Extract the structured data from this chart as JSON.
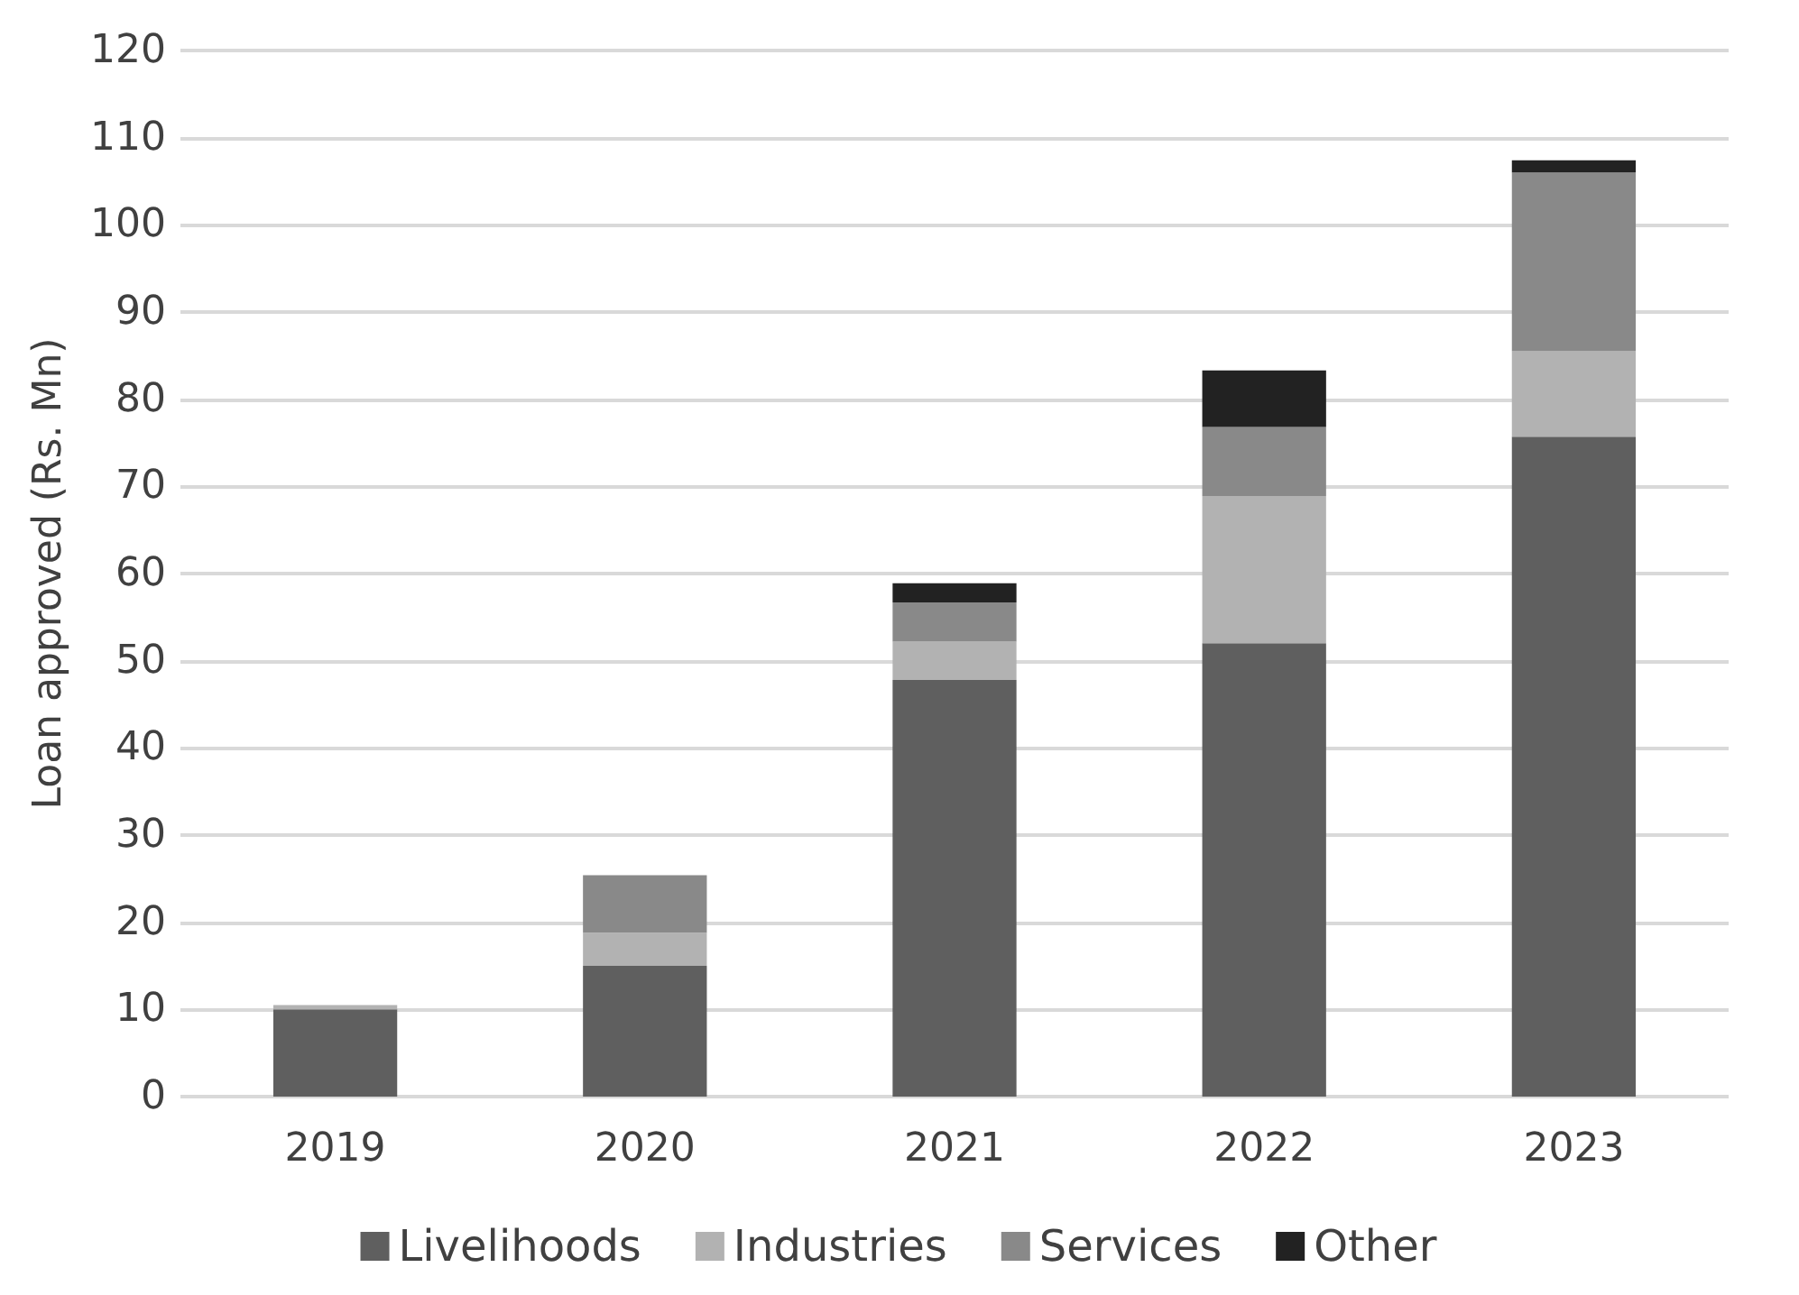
{
  "chart_data": {
    "type": "bar",
    "stacked": true,
    "ylabel": "Loan approved (Rs. Mn)",
    "categories": [
      "2019",
      "2020",
      "2021",
      "2022",
      "2023"
    ],
    "series": [
      {
        "name": "Livelihoods",
        "color": "#5f5f5f",
        "values": [
          10,
          15,
          47.8,
          52,
          75.7
        ]
      },
      {
        "name": "Industries",
        "color": "#b2b2b2",
        "values": [
          0.5,
          3.8,
          4.4,
          16.9,
          9.8
        ]
      },
      {
        "name": "Services",
        "color": "#898989",
        "values": [
          0,
          6.6,
          4.5,
          7.9,
          20.5
        ]
      },
      {
        "name": "Other",
        "color": "#222222",
        "values": [
          0,
          0,
          2.2,
          6.5,
          1.4
        ]
      }
    ],
    "ylim": [
      0,
      120
    ],
    "yticks": [
      0,
      10,
      20,
      30,
      40,
      50,
      60,
      70,
      80,
      90,
      100,
      110,
      120
    ],
    "grid": "y",
    "legend": "bottom"
  }
}
